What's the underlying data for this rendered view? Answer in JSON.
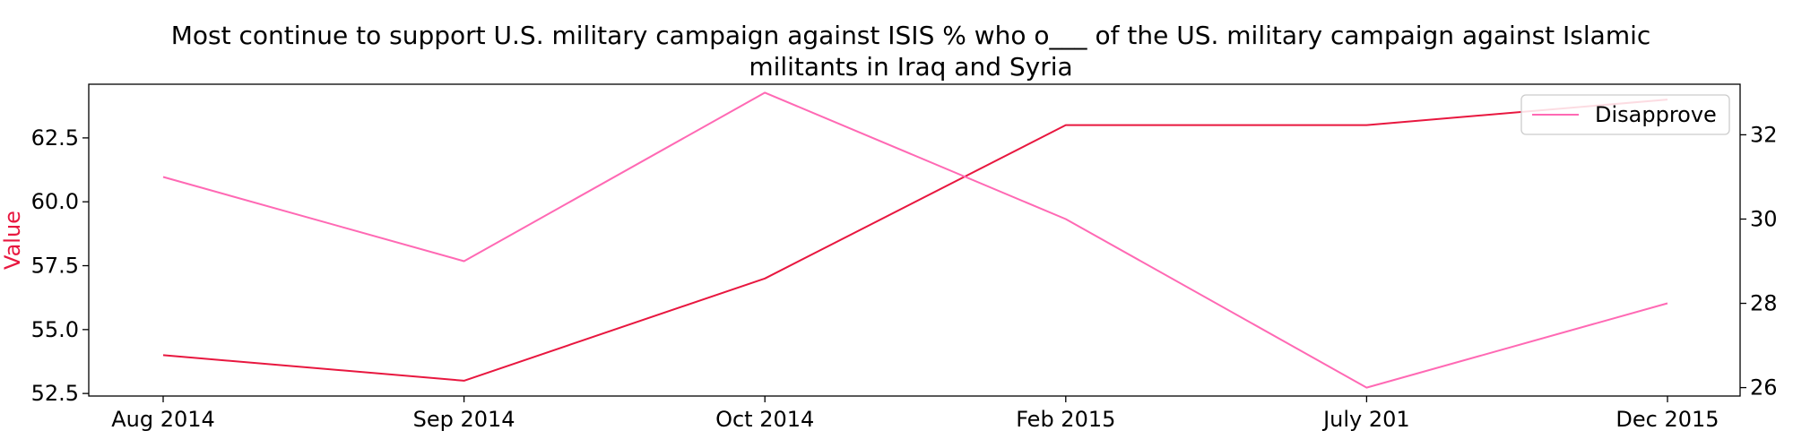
{
  "chart_data": {
    "type": "line",
    "title": "Most continue to support U.S. military campaign against ISIS % who o___ of the US. military campaign against Islamic militants in Iraq and Syria",
    "title_lines": [
      "Most continue to support U.S. military campaign against ISIS % who o___ of the US. military campaign against Islamic",
      "militants in Iraq and Syria"
    ],
    "categories": [
      "Aug 2014",
      "Sep 2014",
      "Oct 2014",
      "Feb 2015",
      "July 201",
      "Dec 2015"
    ],
    "xlabel": "",
    "ylabel": "Value",
    "y2label": "",
    "series": [
      {
        "values": [
          54,
          53,
          57,
          63,
          63,
          64
        ],
        "color": "#e8173f",
        "axis": "left"
      },
      {
        "name": "Disapprove",
        "values": [
          31,
          29,
          33,
          30,
          26,
          28
        ],
        "color": "#ff69b4",
        "axis": "right"
      }
    ],
    "ylim": [
      52.4,
      64.6
    ],
    "y2lim": [
      25.8,
      33.2
    ],
    "yticks": [
      "52.5",
      "55.0",
      "57.5",
      "60.0",
      "62.5"
    ],
    "y2ticks": [
      "26",
      "28",
      "30",
      "32"
    ],
    "ytick_values": [
      52.5,
      55.0,
      57.5,
      60.0,
      62.5
    ],
    "y2tick_values": [
      26,
      28,
      30,
      32
    ],
    "legend": {
      "placement": "top-right",
      "entries": [
        "Disapprove"
      ]
    },
    "grid": false,
    "colors": {
      "axis": "#000000",
      "ylabel": "#e8173f"
    }
  }
}
